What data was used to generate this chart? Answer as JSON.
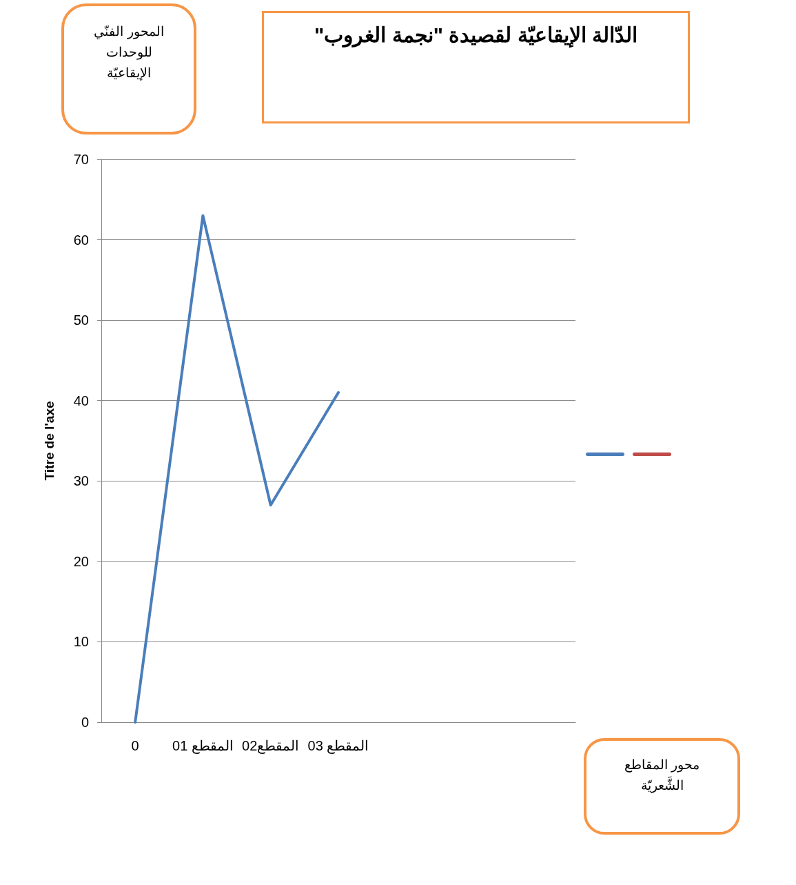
{
  "chart_data": {
    "type": "line",
    "title": "الدّالة الإيقاعيّة لقصيدة \"نجمة الغروب\"",
    "ylabel": "Titre de l'axe",
    "annotations": [
      "المحور الفنّي للوحدات الإيقاعيّة",
      "محور المقاطع الشَّعريّة"
    ],
    "categories": [
      "0",
      "المقطع 01",
      "المقطع02",
      "المقطع 03",
      null,
      null,
      null
    ],
    "series": [
      {
        "color": "#4a7ebb",
        "values": [
          0,
          63,
          27,
          41,
          null,
          null,
          null
        ]
      },
      {
        "color": "#be4b48",
        "values": [
          null,
          null,
          null,
          null,
          null,
          null,
          null
        ]
      }
    ],
    "ylim": [
      0,
      70
    ],
    "yticks": [
      0,
      10,
      20,
      30,
      40,
      50,
      60,
      70
    ],
    "grid": "y",
    "marker": "none",
    "line_style": "solid"
  }
}
